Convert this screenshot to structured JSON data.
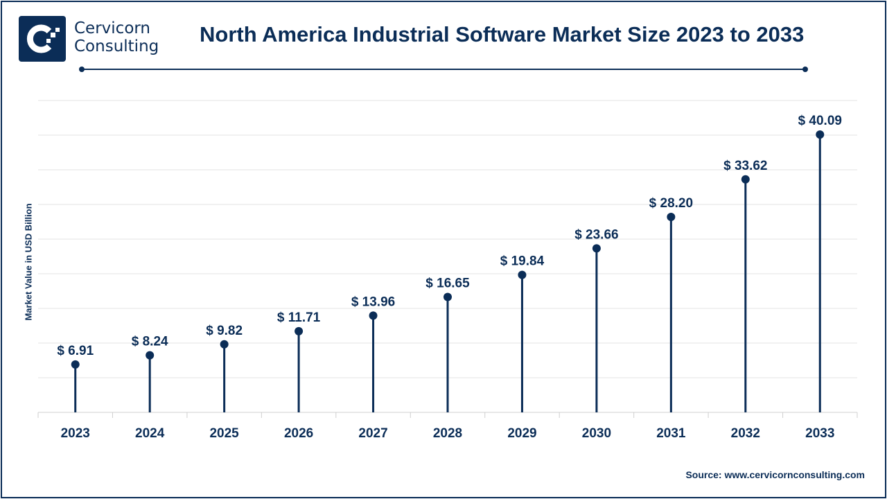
{
  "brand": {
    "line1": "Cervicorn",
    "line2": "Consulting"
  },
  "title": "North America Industrial Software Market Size 2023 to 2033",
  "source": "Source: www.cervicornconsulting.com",
  "colors": {
    "primary": "#0b2d57",
    "grid": "#e3e3e3"
  },
  "chart_data": {
    "type": "lollipop",
    "title": "North America Industrial Software Market Size 2023 to 2033",
    "ylabel": "Market Value in USD Billion",
    "xlabel": "",
    "categories": [
      "2023",
      "2024",
      "2025",
      "2026",
      "2027",
      "2028",
      "2029",
      "2030",
      "2031",
      "2032",
      "2033"
    ],
    "values": [
      6.91,
      8.24,
      9.82,
      11.71,
      13.96,
      16.65,
      19.84,
      23.66,
      28.2,
      33.62,
      40.09
    ],
    "labels": [
      "$ 6.91",
      "$ 8.24",
      "$ 9.82",
      "$ 11.71",
      "$ 13.96",
      "$ 16.65",
      "$ 19.84",
      "$ 23.66",
      "$ 28.20",
      "$ 33.62",
      "$ 40.09"
    ],
    "ylim": [
      0,
      45
    ],
    "grid": true
  }
}
